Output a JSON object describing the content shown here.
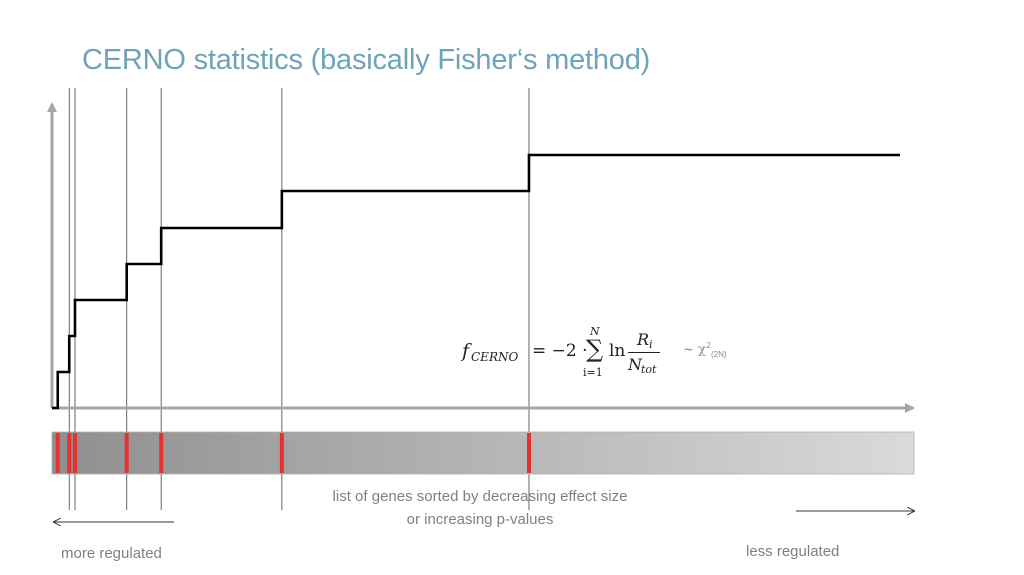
{
  "title": "CERNO statistics (basically Fisher‘s method)",
  "caption": {
    "line1": "list of genes sorted by decreasing effect size",
    "line2": "or increasing p-values"
  },
  "left_label": "more regulated",
  "right_label": "less regulated",
  "formula": {
    "lhs": "f",
    "lhs_sub": "CERNO",
    "equals": "= −2 ·",
    "sum": "∑",
    "sum_top": "N",
    "sum_bottom": "i=1",
    "ln": "ln",
    "numerator": "R",
    "numerator_sub": "i",
    "denominator": "N",
    "denominator_sub": "tot",
    "distribution": "~ χ",
    "distribution_sup": "2",
    "distribution_sub": "(2N)"
  },
  "colors": {
    "title": "#6fa3b8",
    "step_curve": "#000000",
    "axis": "#a6a6a6",
    "gene_mark": "#e8312f",
    "bar_dark": "#8f8f8f",
    "bar_light": "#dadada"
  },
  "gene_hit_ranks": [
    1,
    3,
    4,
    13,
    19,
    40,
    83
  ],
  "total_genes": 150
}
